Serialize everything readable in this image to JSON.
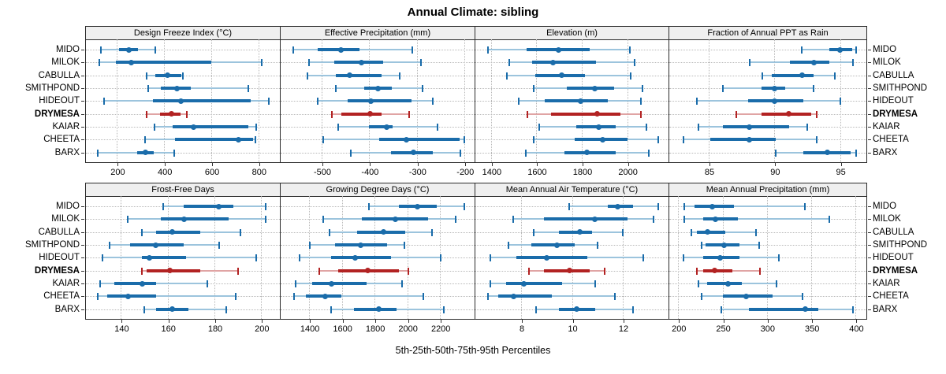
{
  "title": "Annual Climate: sibling",
  "footer": "5th-25th-50th-75th-95th Percentiles",
  "stations": [
    "MIDO",
    "MILOK",
    "CABULLA",
    "SMITHPOND",
    "HIDEOUT",
    "DRYMESA",
    "KAIAR",
    "CHEETA",
    "BARX"
  ],
  "highlight_station": "DRYMESA",
  "colors": {
    "series_blue": "#1a6caa",
    "series_blue_light": "#9cc4dd",
    "highlight_red": "#b22222",
    "highlight_red_light": "#e0a4a4",
    "header_bg": "#efefef",
    "panel_border": "#2b2b2b",
    "grid": "#b8b8b8",
    "text": "#000000"
  },
  "chart_data": [
    {
      "type": "dot_whisker_percentiles",
      "title": "Design Freeze Index (°C)",
      "percentiles": [
        "5th",
        "25th",
        "50th",
        "75th",
        "95th"
      ],
      "xlim": [
        68,
        891
      ],
      "ticks": [
        200,
        400,
        600,
        800
      ],
      "values": {
        "MIDO": [
          130,
          210,
          250,
          290,
          363
        ],
        "MILOK": [
          125,
          195,
          262,
          600,
          815
        ],
        "CABULLA": [
          325,
          363,
          415,
          472,
          481
        ],
        "SMITHPOND": [
          331,
          385,
          455,
          514,
          756
        ],
        "HIDEOUT": [
          146,
          352,
          470,
          766,
          843
        ],
        "DRYMESA": [
          327,
          383,
          431,
          469,
          495
        ],
        "KAIAR": [
          360,
          435,
          524,
          756,
          791
        ],
        "CHEETA": [
          318,
          446,
          716,
          777,
          786
        ],
        "BARX": [
          119,
          284,
          321,
          356,
          444
        ]
      }
    },
    {
      "type": "dot_whisker_percentiles",
      "title": "Effective Precipitation (mm)",
      "percentiles": [
        "5th",
        "25th",
        "50th",
        "75th",
        "95th"
      ],
      "xlim": [
        -586,
        -179
      ],
      "ticks": [
        -500,
        -400,
        -300,
        -200
      ],
      "values": {
        "MIDO": [
          -560,
          -508,
          -460,
          -420,
          -310
        ],
        "MILOK": [
          -526,
          -474,
          -416,
          -371,
          -291
        ],
        "CABULLA": [
          -529,
          -470,
          -442,
          -375,
          -336
        ],
        "SMITHPOND": [
          -470,
          -411,
          -381,
          -352,
          -288
        ],
        "HIDEOUT": [
          -509,
          -446,
          -396,
          -311,
          -266
        ],
        "DRYMESA": [
          -478,
          -458,
          -398,
          -374,
          -316
        ],
        "KAIAR": [
          -466,
          -401,
          -364,
          -351,
          -256
        ],
        "CHEETA": [
          -497,
          -380,
          -322,
          -211,
          -201
        ],
        "BARX": [
          -438,
          -355,
          -307,
          -267,
          -209
        ]
      }
    },
    {
      "type": "dot_whisker_percentiles",
      "title": "Elevation (m)",
      "percentiles": [
        "5th",
        "25th",
        "50th",
        "75th",
        "95th"
      ],
      "xlim": [
        1331,
        2182
      ],
      "ticks": [
        1400,
        1600,
        1800,
        2000
      ],
      "values": {
        "MIDO": [
          1386,
          1558,
          1697,
          1836,
          2012
        ],
        "MILOK": [
          1481,
          1582,
          1673,
          1864,
          2031
        ],
        "CABULLA": [
          1469,
          1594,
          1713,
          1815,
          2014
        ],
        "SMITHPOND": [
          1588,
          1735,
          1856,
          1942,
          2066
        ],
        "HIDEOUT": [
          1523,
          1636,
          1796,
          1913,
          2060
        ],
        "DRYMESA": [
          1559,
          1665,
          1867,
          1971,
          2060
        ],
        "KAIAR": [
          1611,
          1775,
          1873,
          1948,
          2086
        ],
        "CHEETA": [
          1587,
          1769,
          1892,
          2000,
          2138
        ],
        "BARX": [
          1553,
          1723,
          1824,
          1948,
          2096
        ]
      }
    },
    {
      "type": "dot_whisker_percentiles",
      "title": "Fraction of Annual PPT as Rain",
      "percentiles": [
        "5th",
        "25th",
        "50th",
        "75th",
        "95th"
      ],
      "xlim": [
        82,
        97
      ],
      "ticks": [
        85,
        90,
        95
      ],
      "values": {
        "MIDO": [
          92.1,
          94.2,
          95.0,
          95.9,
          96.2
        ],
        "MILOK": [
          88.1,
          91.2,
          93.0,
          94.2,
          96.0
        ],
        "CABULLA": [
          89.1,
          89.8,
          92.1,
          93.0,
          94.6
        ],
        "SMITHPOND": [
          86.1,
          89.0,
          90.0,
          90.8,
          93.0
        ],
        "HIDEOUT": [
          84.1,
          88.0,
          90.0,
          92.2,
          95.0
        ],
        "DRYMESA": [
          87.1,
          89.0,
          91.1,
          92.8,
          93.2
        ],
        "KAIAR": [
          84.2,
          86.1,
          88.1,
          91.1,
          92.5
        ],
        "CHEETA": [
          83.1,
          85.1,
          88.1,
          90.1,
          93.2
        ],
        "BARX": [
          90.1,
          92.2,
          94.0,
          95.8,
          96.2
        ]
      }
    },
    {
      "type": "dot_whisker_percentiles",
      "title": "Frost-Free Days",
      "percentiles": [
        "5th",
        "25th",
        "50th",
        "75th",
        "95th"
      ],
      "xlim": [
        125,
        208
      ],
      "ticks": [
        140,
        160,
        180,
        200
      ],
      "values": {
        "MIDO": [
          158,
          167,
          182,
          188,
          202
        ],
        "MILOK": [
          143,
          157,
          167,
          186,
          202
        ],
        "CABULLA": [
          149,
          155,
          162,
          174,
          191
        ],
        "SMITHPOND": [
          135,
          144,
          155,
          167,
          182
        ],
        "HIDEOUT": [
          132,
          149,
          152,
          168,
          198
        ],
        "DRYMESA": [
          149,
          151,
          161,
          174,
          190
        ],
        "KAIAR": [
          131,
          137,
          149,
          155,
          177
        ],
        "CHEETA": [
          130,
          134,
          143,
          155,
          189
        ],
        "BARX": [
          150,
          155,
          162,
          169,
          185
        ]
      }
    },
    {
      "type": "dot_whisker_percentiles",
      "title": "Growing Degree Days (°C)",
      "percentiles": [
        "5th",
        "25th",
        "50th",
        "75th",
        "95th"
      ],
      "xlim": [
        1226,
        2411
      ],
      "ticks": [
        1400,
        1600,
        1800,
        2000,
        2200
      ],
      "values": {
        "MIDO": [
          1766,
          1947,
          2064,
          2180,
          2348
        ],
        "MILOK": [
          1486,
          1723,
          1927,
          2128,
          2296
        ],
        "CABULLA": [
          1527,
          1691,
          1856,
          1988,
          2152
        ],
        "SMITHPOND": [
          1403,
          1560,
          1715,
          1875,
          1984
        ],
        "HIDEOUT": [
          1344,
          1532,
          1683,
          1899,
          2203
        ],
        "DRYMESA": [
          1464,
          1580,
          1760,
          1947,
          2008
        ],
        "KAIAR": [
          1318,
          1419,
          1539,
          1752,
          1966
        ],
        "CHEETA": [
          1307,
          1379,
          1496,
          1595,
          2099
        ],
        "BARX": [
          1536,
          1675,
          1827,
          1933,
          2224
        ]
      }
    },
    {
      "type": "dot_whisker_percentiles",
      "title": "Mean Annual Air Temperature (°C)",
      "percentiles": [
        "5th",
        "25th",
        "50th",
        "75th",
        "95th"
      ],
      "xlim": [
        6.2,
        13.8
      ],
      "ticks": [
        8,
        10,
        12
      ],
      "values": {
        "MIDO": [
          9.9,
          11.4,
          11.8,
          12.4,
          13.4
        ],
        "MILOK": [
          7.7,
          8.9,
          10.9,
          12.2,
          13.2
        ],
        "CABULLA": [
          8.5,
          9.5,
          10.3,
          10.8,
          12.0
        ],
        "SMITHPOND": [
          7.5,
          8.4,
          9.4,
          10.1,
          11.0
        ],
        "HIDEOUT": [
          6.8,
          7.8,
          9.0,
          10.6,
          12.8
        ],
        "DRYMESA": [
          8.3,
          8.9,
          9.9,
          10.7,
          11.3
        ],
        "KAIAR": [
          6.8,
          7.4,
          8.1,
          9.6,
          10.9
        ],
        "CHEETA": [
          6.7,
          7.1,
          7.7,
          9.2,
          11.7
        ],
        "BARX": [
          8.6,
          9.5,
          10.2,
          10.9,
          12.4
        ]
      }
    },
    {
      "type": "dot_whisker_percentiles",
      "title": "Mean Annual Precipitation (mm)",
      "percentiles": [
        "5th",
        "25th",
        "50th",
        "75th",
        "95th"
      ],
      "xlim": [
        190,
        412
      ],
      "ticks": [
        200,
        250,
        300,
        350,
        400
      ],
      "values": {
        "MIDO": [
          207,
          218,
          238,
          263,
          343
        ],
        "MILOK": [
          207,
          228,
          242,
          267,
          370
        ],
        "CABULLA": [
          215,
          221,
          233,
          253,
          288
        ],
        "SMITHPOND": [
          226,
          231,
          252,
          269,
          291
        ],
        "HIDEOUT": [
          206,
          228,
          247,
          269,
          313
        ],
        "DRYMESA": [
          221,
          228,
          241,
          261,
          292
        ],
        "KAIAR": [
          223,
          233,
          256,
          272,
          311
        ],
        "CHEETA": [
          226,
          250,
          277,
          306,
          340
        ],
        "BARX": [
          249,
          280,
          343,
          358,
          397
        ]
      }
    }
  ]
}
